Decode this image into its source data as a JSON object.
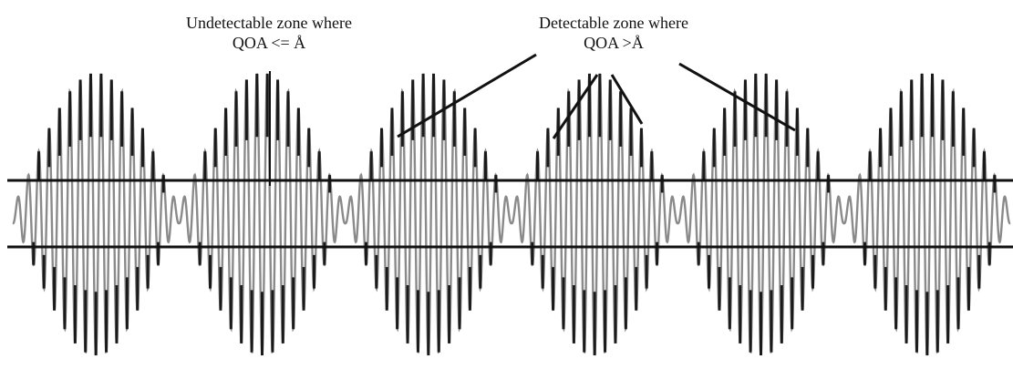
{
  "annotations": {
    "undetectable": {
      "line1": "Undetectable zone where",
      "line2": "QOA <= Å"
    },
    "detectable": {
      "line1": "Detectable zone where",
      "line2": "QOA >Å"
    }
  },
  "signal": {
    "packet_count": 6,
    "cycles_per_packet": 16
  },
  "colors": {
    "ink": "#111111",
    "signal_light": "#8a8a8a",
    "signal_dark": "#1a1a1a"
  }
}
